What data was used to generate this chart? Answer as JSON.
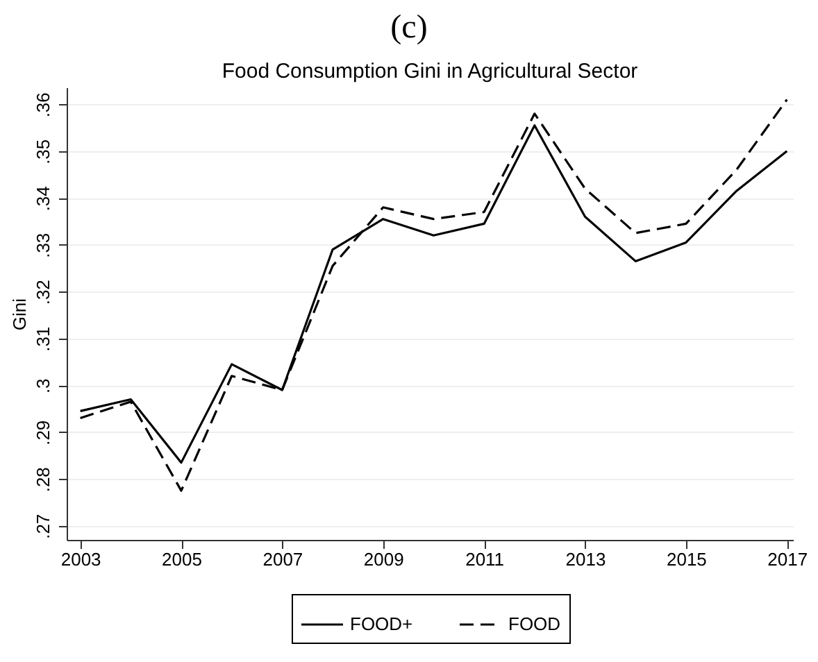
{
  "chart_data": {
    "type": "line",
    "title": "Food Consumption Gini in Agricultural Sector",
    "ylabel": "Gini",
    "annotations": [
      "(c)"
    ],
    "x": [
      2003,
      2004,
      2005,
      2006,
      2007,
      2008,
      2009,
      2010,
      2011,
      2012,
      2013,
      2014,
      2015,
      2016,
      2017
    ],
    "series": [
      {
        "name": "FOOD+",
        "color": "#000000",
        "line_style": "solid",
        "values": [
          0.2945,
          0.297,
          0.2835,
          0.3045,
          0.299,
          0.329,
          0.3355,
          0.332,
          0.3345,
          0.3555,
          0.336,
          0.3265,
          0.3305,
          0.3415,
          0.35
        ]
      },
      {
        "name": "FOOD",
        "color": "#000000",
        "line_style": "dashed",
        "values": [
          0.293,
          0.2965,
          0.2775,
          0.302,
          0.299,
          0.3255,
          0.338,
          0.3355,
          0.337,
          0.358,
          0.342,
          0.3325,
          0.3345,
          0.346,
          0.361
        ]
      }
    ],
    "xlim": [
      2002.73,
      2017.12
    ],
    "xticks": [
      2003,
      2005,
      2007,
      2009,
      2011,
      2013,
      2015,
      2017
    ],
    "ylim": [
      0.267,
      0.3636
    ],
    "yticks": [
      {
        "value": 0.27,
        "label": ".27"
      },
      {
        "value": 0.28,
        "label": ".28"
      },
      {
        "value": 0.29,
        "label": ".29"
      },
      {
        "value": 0.3,
        "label": ".3"
      },
      {
        "value": 0.31,
        "label": ".31"
      },
      {
        "value": 0.32,
        "label": ".32"
      },
      {
        "value": 0.33,
        "label": ".33"
      },
      {
        "value": 0.34,
        "label": ".34"
      },
      {
        "value": 0.35,
        "label": ".35"
      },
      {
        "value": 0.36,
        "label": ".36"
      }
    ],
    "grid": "y",
    "legend": "bottom",
    "marker": "none"
  }
}
